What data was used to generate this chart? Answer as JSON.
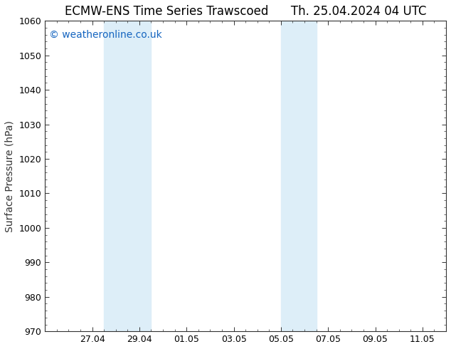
{
  "title_left": "ECMW-ENS Time Series Trawscoed",
  "title_right": "Th. 25.04.2024 04 UTC",
  "ylabel": "Surface Pressure (hPa)",
  "ylim": [
    970,
    1060
  ],
  "yticks": [
    970,
    980,
    990,
    1000,
    1010,
    1020,
    1030,
    1040,
    1050,
    1060
  ],
  "xlabel_ticks": [
    "27.04",
    "29.04",
    "01.05",
    "03.05",
    "05.05",
    "07.05",
    "09.05",
    "11.05"
  ],
  "x_tick_positions": [
    2,
    4,
    6,
    8,
    10,
    12,
    14,
    16
  ],
  "xlim": [
    0,
    17
  ],
  "shaded_bands": [
    {
      "x_start": 2.5,
      "x_end": 4.5,
      "color": "#ddeef8"
    },
    {
      "x_start": 10.0,
      "x_end": 11.5,
      "color": "#ddeef8"
    }
  ],
  "watermark_text": "© weatheronline.co.uk",
  "watermark_color": "#1565c0",
  "watermark_fontsize": 10,
  "background_color": "#ffffff",
  "plot_background": "#ffffff",
  "title_fontsize": 12,
  "ylabel_fontsize": 10,
  "tick_fontsize": 9,
  "border_color": "#333333"
}
